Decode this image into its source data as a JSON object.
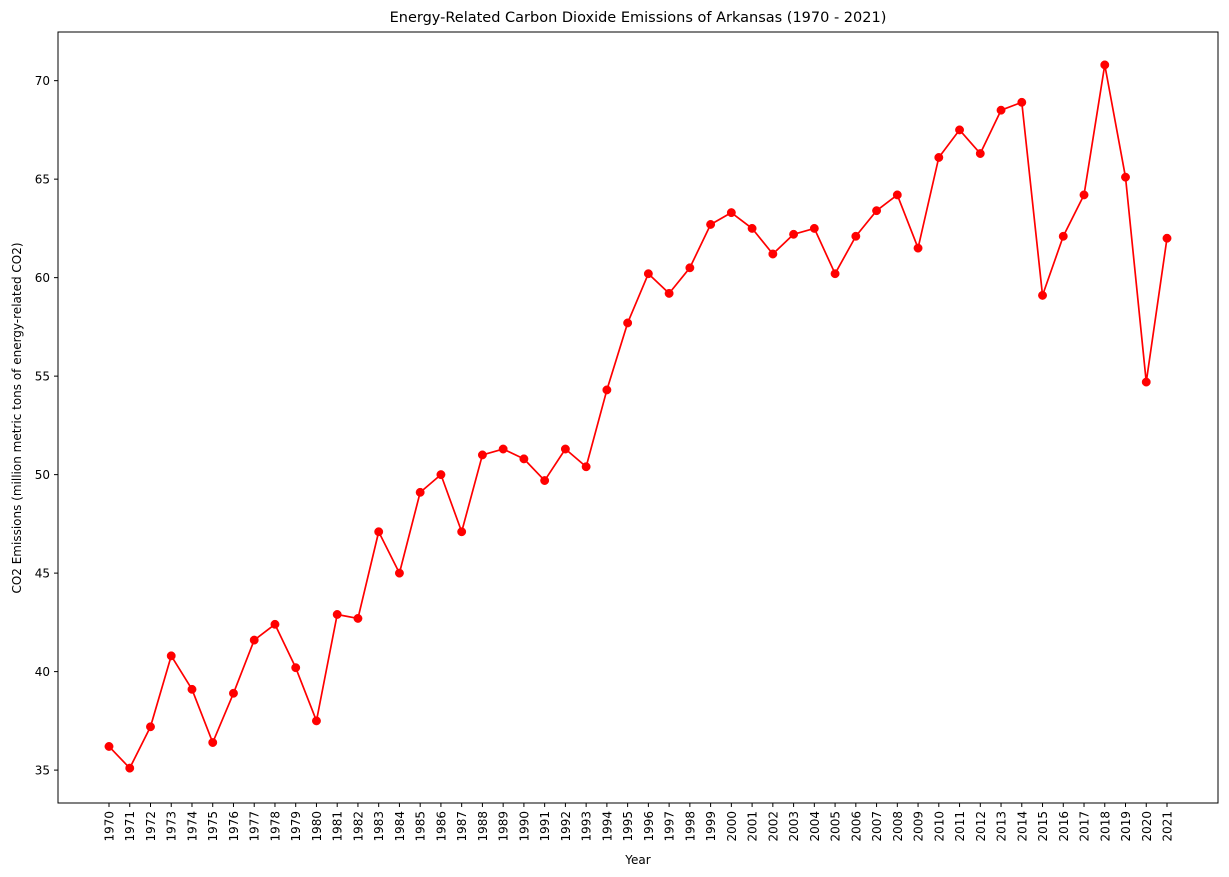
{
  "chart_data": {
    "type": "line",
    "title": "Energy-Related Carbon Dioxide Emissions of Arkansas (1970 - 2021)",
    "xlabel": "Year",
    "ylabel": "CO2 Emissions (million metric tons of energy-related CO2)",
    "x": [
      "1970",
      "1971",
      "1972",
      "1973",
      "1974",
      "1975",
      "1976",
      "1977",
      "1978",
      "1979",
      "1980",
      "1981",
      "1982",
      "1983",
      "1984",
      "1985",
      "1986",
      "1987",
      "1988",
      "1989",
      "1990",
      "1991",
      "1992",
      "1993",
      "1994",
      "1995",
      "1996",
      "1997",
      "1998",
      "1999",
      "2000",
      "2001",
      "2002",
      "2003",
      "2004",
      "2005",
      "2006",
      "2007",
      "2008",
      "2009",
      "2010",
      "2011",
      "2012",
      "2013",
      "2014",
      "2015",
      "2016",
      "2017",
      "2018",
      "2019",
      "2020",
      "2021"
    ],
    "series": [
      {
        "color": "#ff0000",
        "marker": "circle",
        "values": [
          36.2,
          35.1,
          37.2,
          40.8,
          39.1,
          36.4,
          38.9,
          41.6,
          42.4,
          40.2,
          37.5,
          42.9,
          42.7,
          47.1,
          45.0,
          49.1,
          50.0,
          47.1,
          51.0,
          51.3,
          50.8,
          49.7,
          51.3,
          50.4,
          54.3,
          57.7,
          60.2,
          59.2,
          60.5,
          62.7,
          63.3,
          62.5,
          61.2,
          62.2,
          62.5,
          60.2,
          62.1,
          63.4,
          64.2,
          61.5,
          66.1,
          67.5,
          66.3,
          68.5,
          68.9,
          59.1,
          62.1,
          64.2,
          70.8,
          65.1,
          54.7,
          62.0
        ]
      }
    ],
    "yticks": [
      35,
      40,
      45,
      50,
      55,
      60,
      65,
      70
    ],
    "ylim": [
      33.33,
      72.47
    ],
    "grid": false,
    "legend": "none"
  }
}
